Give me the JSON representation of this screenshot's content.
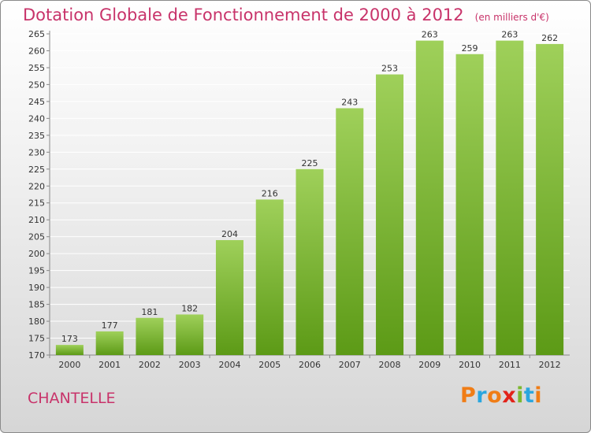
{
  "header": {
    "title": "Dotation Globale de Fonctionnement de 2000 à 2012",
    "unit": "(en milliers d'€)"
  },
  "commune": "CHANTELLE",
  "logo": {
    "text": "Proxiti",
    "letters": [
      "P",
      "r",
      "o",
      "x",
      "i",
      "t",
      "i"
    ],
    "colors": [
      "#f07d16",
      "#2aa6df",
      "#f07d16",
      "#e2231a",
      "#7cb82f",
      "#2aa6df",
      "#f07d16"
    ]
  },
  "colors": {
    "bar_top": "#9fd05a",
    "bar_bottom": "#5c9a16",
    "title": "#c8336a",
    "grid": "#ffffff"
  },
  "chart_data": {
    "type": "bar",
    "title": "Dotation Globale de Fonctionnement de 2000 à 2012",
    "subtitle": "(en milliers d'€)",
    "xlabel": "",
    "ylabel": "",
    "ylim": [
      170,
      265
    ],
    "y_ticks": [
      170,
      175,
      180,
      185,
      190,
      195,
      200,
      205,
      210,
      215,
      220,
      225,
      230,
      235,
      240,
      245,
      250,
      255,
      260,
      265
    ],
    "categories": [
      "2000",
      "2001",
      "2002",
      "2003",
      "2004",
      "2005",
      "2006",
      "2007",
      "2008",
      "2009",
      "2010",
      "2011",
      "2012"
    ],
    "values": [
      173,
      177,
      181,
      182,
      204,
      216,
      225,
      243,
      253,
      263,
      259,
      263,
      262
    ],
    "grid": true,
    "legend": "none"
  }
}
